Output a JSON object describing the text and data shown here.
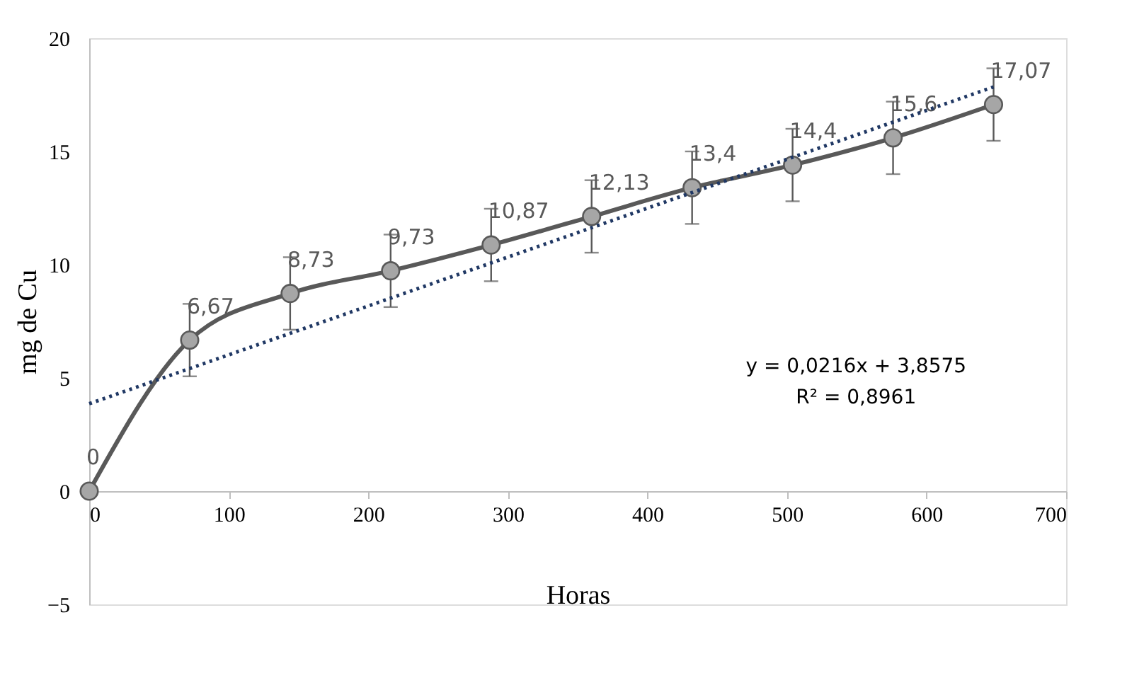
{
  "chart_data": {
    "type": "line",
    "xlabel": "Horas",
    "ylabel": "mg de Cu",
    "x": [
      0,
      72,
      144,
      216,
      288,
      360,
      432,
      504,
      576,
      648
    ],
    "xlim": [
      0,
      700
    ],
    "xticks": [
      0,
      100,
      200,
      300,
      400,
      500,
      600,
      700
    ],
    "ylim": [
      -5,
      20
    ],
    "yticks": [
      -5,
      0,
      5,
      10,
      15,
      20
    ],
    "grid": false,
    "marker": "circle",
    "line_style": "solid",
    "series": [
      {
        "color": "#595959",
        "values": [
          0,
          6.67,
          8.73,
          9.73,
          10.87,
          12.13,
          13.4,
          14.4,
          15.6,
          17.07
        ],
        "errors": [
          null,
          1.6,
          1.6,
          1.6,
          1.6,
          1.6,
          1.6,
          1.6,
          1.6,
          1.6
        ],
        "value_labels": [
          "0",
          "6,67",
          "8,73",
          "9,73",
          "10,87",
          "12,13",
          "13,4",
          "14,4",
          "15,6",
          "17,07"
        ]
      },
      {
        "type": "line",
        "color": "#203864",
        "line_style": "dotted",
        "marker": "none",
        "x": [
          0,
          648
        ],
        "values": [
          3.86,
          17.85
        ]
      }
    ],
    "annotations": [
      "y = 0,0216x + 3,8575",
      "R² = 0,8961"
    ]
  }
}
